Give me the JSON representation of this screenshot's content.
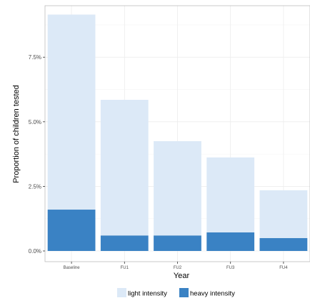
{
  "chart_data": {
    "type": "bar",
    "stacked": true,
    "title": "",
    "xlabel": "Year",
    "ylabel": "Proportion of children tested",
    "categories": [
      "Baseline",
      "FU1",
      "FU2",
      "FU3",
      "FU4"
    ],
    "series": [
      {
        "name": "heavy intensity",
        "color": "#3a82c4",
        "values": [
          1.6,
          0.6,
          0.6,
          0.72,
          0.5
        ]
      },
      {
        "name": "light intensity",
        "color": "#dce9f7",
        "values": [
          7.55,
          5.25,
          3.65,
          2.9,
          1.85
        ]
      }
    ],
    "totals": [
      9.15,
      5.85,
      4.25,
      3.62,
      2.35
    ],
    "ylim": [
      0,
      9.3
    ],
    "yticks": [
      0,
      2.5,
      5.0,
      7.5
    ],
    "ytick_labels": [
      "0.0%",
      "2.5%",
      "5.0%",
      "7.5%"
    ],
    "grid": true,
    "legend_position": "bottom"
  }
}
